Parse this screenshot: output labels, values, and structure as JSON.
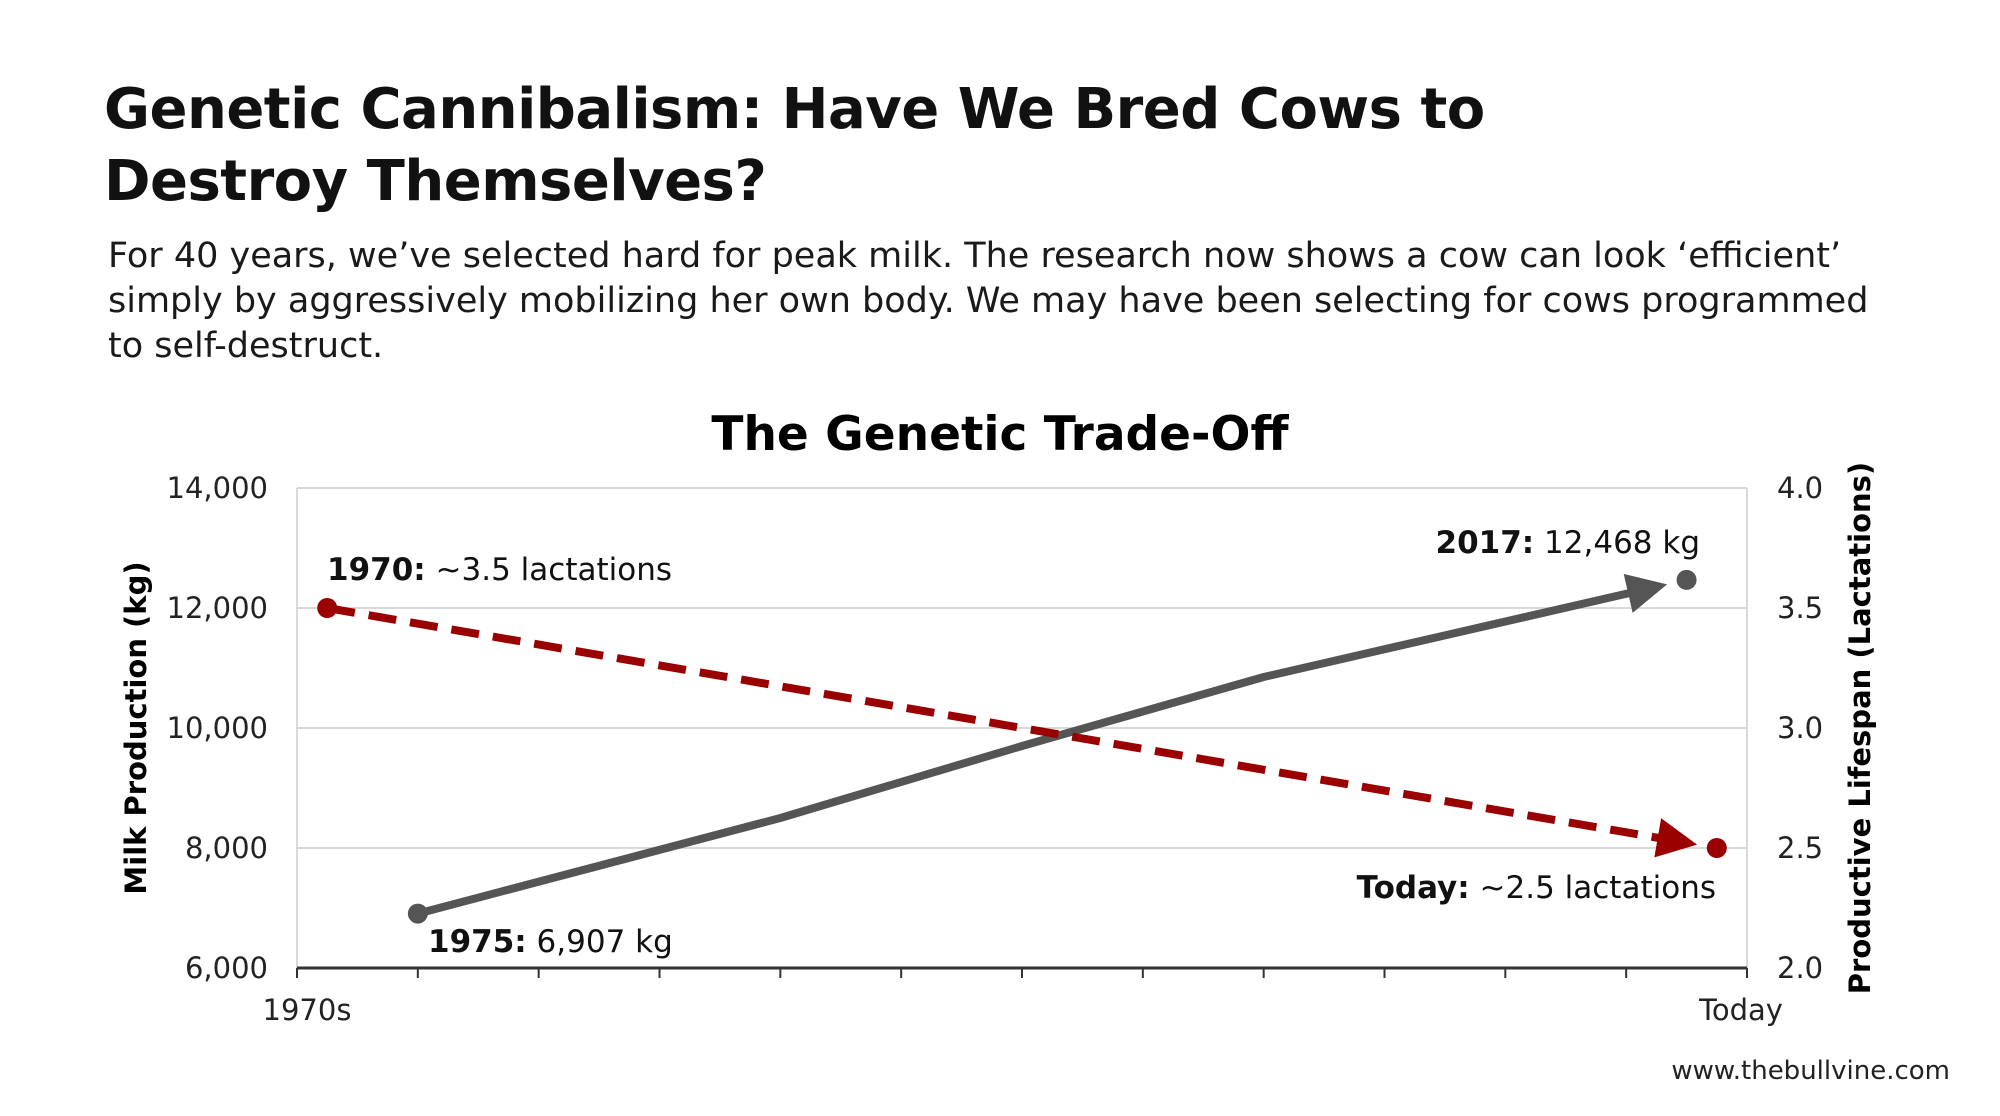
{
  "header": {
    "title": "Genetic Cannibalism: Have We Bred Cows to Destroy Themselves?",
    "subtitle": "For 40 years, we’ve selected hard for peak milk. The research now shows a cow can look ‘efficient’ simply by aggressively mobilizing her own body. We may have been selecting for cows programmed to self-destruct."
  },
  "watermark": "www.thebullvine.com",
  "chart_data": {
    "type": "line",
    "title": "The Genetic Trade-Off",
    "xlabel": "",
    "x_tick_labels": [
      {
        "x": 0,
        "label": "1970s"
      },
      {
        "x": 12,
        "label": "Today"
      }
    ],
    "x_range": [
      0,
      12
    ],
    "x_tick_count": 12,
    "ylabel": "Milk Production (kg)",
    "ylim": [
      6000,
      14000
    ],
    "y_ticks": [
      "6,000",
      "8,000",
      "10,000",
      "12,000",
      "14,000"
    ],
    "y_tick_values": [
      6000,
      8000,
      10000,
      12000,
      14000
    ],
    "y2label": "Productive Lifespan (Lactations)",
    "y2lim": [
      2.0,
      4.0
    ],
    "y2_ticks": [
      "2.0",
      "2.5",
      "3.0",
      "3.5",
      "4.0"
    ],
    "y2_tick_values": [
      2.0,
      2.5,
      3.0,
      3.5,
      4.0
    ],
    "grid": true,
    "series": [
      {
        "name": "Milk Production",
        "axis": "left",
        "color": "#555555",
        "style": "solid",
        "points": [
          [
            1,
            6907
          ],
          [
            4,
            8500
          ],
          [
            6,
            9700
          ],
          [
            8,
            10850
          ],
          [
            11.5,
            12468
          ]
        ],
        "annotations": [
          {
            "bold": "1975:",
            "text": " 6,907 kg"
          },
          {
            "bold": "2017:",
            "text": " 12,468 kg"
          }
        ]
      },
      {
        "name": "Productive Lifespan",
        "axis": "right",
        "color": "#9b0000",
        "style": "dashed",
        "points": [
          [
            0.25,
            3.5
          ],
          [
            11.75,
            2.5
          ]
        ],
        "annotations": [
          {
            "bold": "1970:",
            "text": " ~3.5 lactations"
          },
          {
            "bold": "Today:",
            "text": " ~2.5 lactations"
          }
        ]
      }
    ]
  }
}
